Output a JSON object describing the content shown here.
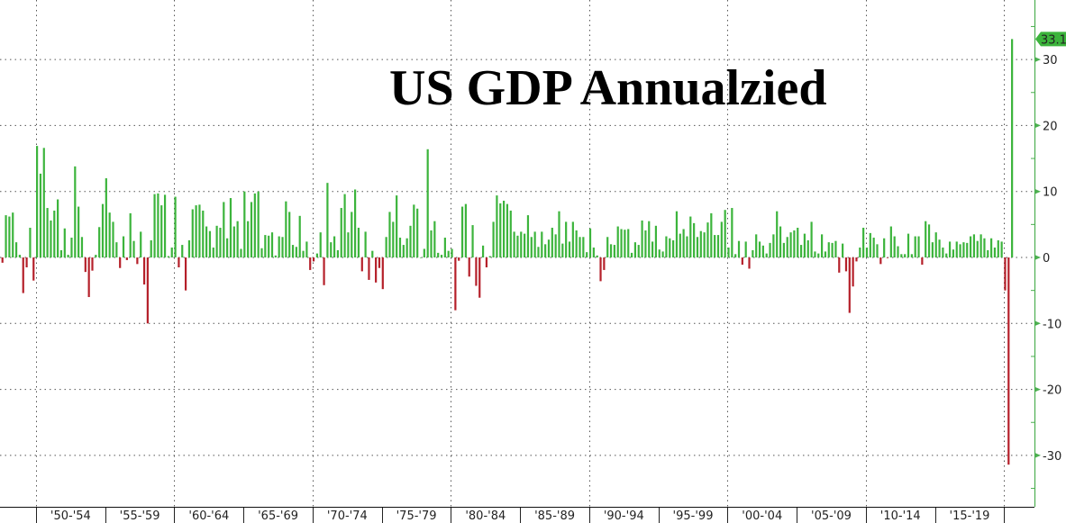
{
  "chart_data": {
    "type": "bar",
    "title": "US GDP Annualzied",
    "xlabel": "",
    "ylabel": "",
    "ylim": [
      -38,
      39
    ],
    "y_ticks": [
      30,
      20,
      10,
      0,
      -10,
      -20,
      -30
    ],
    "grid": true,
    "last_value_label": "33.1",
    "x_tick_labels": [
      "'50-'54",
      "'55-'59",
      "'60-'64",
      "'65-'69",
      "'70-'74",
      "'75-'79",
      "'80-'84",
      "'85-'89",
      "'90-'94",
      "'95-'99",
      "'00-'04",
      "'05-'09",
      "'10-'14",
      "'15-'19"
    ],
    "colors": {
      "positive": "#3cb43c",
      "negative": "#b5202a",
      "axis": "#4caf50",
      "label_tag": "#3cb43c"
    },
    "quarterly_values_by_year": [
      {
        "year": 1947,
        "q": [
          null,
          -1.0,
          -0.8,
          6.4
        ]
      },
      {
        "year": 1948,
        "q": [
          6.2,
          6.8,
          2.3,
          0.4
        ]
      },
      {
        "year": 1949,
        "q": [
          -5.4,
          -1.5,
          4.5,
          -3.5
        ]
      },
      {
        "year": 1950,
        "q": [
          16.9,
          12.7,
          16.6,
          7.5
        ]
      },
      {
        "year": 1951,
        "q": [
          5.6,
          7.1,
          8.8,
          1.1
        ]
      },
      {
        "year": 1952,
        "q": [
          4.4,
          0.4,
          3.0,
          13.8
        ]
      },
      {
        "year": 1953,
        "q": [
          7.7,
          3.1,
          -2.2,
          -6.0
        ]
      },
      {
        "year": 1954,
        "q": [
          -2.0,
          0.4,
          4.6,
          8.1
        ]
      },
      {
        "year": 1955,
        "q": [
          12.0,
          6.8,
          5.4,
          2.3
        ]
      },
      {
        "year": 1956,
        "q": [
          -1.6,
          3.2,
          -0.4,
          6.7
        ]
      },
      {
        "year": 1957,
        "q": [
          2.5,
          -1.0,
          3.9,
          -4.1
        ]
      },
      {
        "year": 1958,
        "q": [
          -10.0,
          2.6,
          9.6,
          9.7
        ]
      },
      {
        "year": 1959,
        "q": [
          7.9,
          9.5,
          0.2,
          1.5
        ]
      },
      {
        "year": 1960,
        "q": [
          9.2,
          -1.5,
          1.9,
          -5.0
        ]
      },
      {
        "year": 1961,
        "q": [
          2.6,
          7.3,
          7.9,
          8.0
        ]
      },
      {
        "year": 1962,
        "q": [
          7.1,
          4.7,
          4.0,
          1.5
        ]
      },
      {
        "year": 1963,
        "q": [
          4.8,
          4.5,
          8.4,
          2.9
        ]
      },
      {
        "year": 1964,
        "q": [
          9.0,
          4.7,
          5.5,
          1.3
        ]
      },
      {
        "year": 1965,
        "q": [
          10.0,
          5.5,
          8.4,
          9.7
        ]
      },
      {
        "year": 1966,
        "q": [
          10.0,
          1.4,
          3.4,
          3.3
        ]
      },
      {
        "year": 1967,
        "q": [
          3.8,
          0.3,
          3.2,
          3.1
        ]
      },
      {
        "year": 1968,
        "q": [
          8.5,
          6.9,
          1.9,
          1.6
        ]
      },
      {
        "year": 1969,
        "q": [
          6.3,
          1.0,
          2.4,
          -1.9
        ]
      },
      {
        "year": 1970,
        "q": [
          -0.6,
          0.6,
          3.8,
          -4.2
        ]
      },
      {
        "year": 1971,
        "q": [
          11.3,
          2.3,
          3.2,
          1.1
        ]
      },
      {
        "year": 1972,
        "q": [
          7.5,
          9.6,
          3.8,
          6.9
        ]
      },
      {
        "year": 1973,
        "q": [
          10.3,
          4.5,
          -2.1,
          3.9
        ]
      },
      {
        "year": 1974,
        "q": [
          -3.4,
          1.0,
          -3.8,
          -1.6
        ]
      },
      {
        "year": 1975,
        "q": [
          -4.8,
          3.1,
          6.9,
          5.4
        ]
      },
      {
        "year": 1976,
        "q": [
          9.4,
          3.0,
          1.9,
          2.9
        ]
      },
      {
        "year": 1977,
        "q": [
          4.8,
          8.0,
          7.4,
          0.0
        ]
      },
      {
        "year": 1978,
        "q": [
          1.3,
          16.4,
          4.1,
          5.5
        ]
      },
      {
        "year": 1979,
        "q": [
          0.7,
          0.4,
          3.0,
          1.0
        ]
      },
      {
        "year": 1980,
        "q": [
          1.3,
          -8.0,
          -0.5,
          7.7
        ]
      },
      {
        "year": 1981,
        "q": [
          8.1,
          -2.9,
          4.9,
          -4.3
        ]
      },
      {
        "year": 1982,
        "q": [
          -6.1,
          1.8,
          -1.5,
          0.2
        ]
      },
      {
        "year": 1983,
        "q": [
          5.4,
          9.4,
          8.2,
          8.6
        ]
      },
      {
        "year": 1984,
        "q": [
          8.1,
          7.1,
          3.9,
          3.3
        ]
      },
      {
        "year": 1985,
        "q": [
          3.9,
          3.6,
          6.4,
          3.1
        ]
      },
      {
        "year": 1986,
        "q": [
          3.9,
          1.6,
          3.9,
          2.0
        ]
      },
      {
        "year": 1987,
        "q": [
          2.7,
          4.5,
          3.5,
          7.0
        ]
      },
      {
        "year": 1988,
        "q": [
          2.1,
          5.4,
          2.4,
          5.4
        ]
      },
      {
        "year": 1989,
        "q": [
          4.1,
          3.1,
          3.1,
          0.8
        ]
      },
      {
        "year": 1990,
        "q": [
          4.4,
          1.5,
          0.3,
          -3.6
        ]
      },
      {
        "year": 1991,
        "q": [
          -1.9,
          3.1,
          2.0,
          1.9
        ]
      },
      {
        "year": 1992,
        "q": [
          4.7,
          4.3,
          4.2,
          4.3
        ]
      },
      {
        "year": 1993,
        "q": [
          0.7,
          2.3,
          1.9,
          5.6
        ]
      },
      {
        "year": 1994,
        "q": [
          4.1,
          5.5,
          2.4,
          4.8
        ]
      },
      {
        "year": 1995,
        "q": [
          1.2,
          0.9,
          3.2,
          2.9
        ]
      },
      {
        "year": 1996,
        "q": [
          2.6,
          7.0,
          3.6,
          4.3
        ]
      },
      {
        "year": 1997,
        "q": [
          3.2,
          6.2,
          5.2,
          3.1
        ]
      },
      {
        "year": 1998,
        "q": [
          4.0,
          3.8,
          5.3,
          6.7
        ]
      },
      {
        "year": 1999,
        "q": [
          3.4,
          3.4,
          5.4,
          7.2
        ]
      },
      {
        "year": 2000,
        "q": [
          1.5,
          7.5,
          0.5,
          2.5
        ]
      },
      {
        "year": 2001,
        "q": [
          -1.1,
          2.4,
          -1.7,
          1.1
        ]
      },
      {
        "year": 2002,
        "q": [
          3.5,
          2.4,
          1.8,
          0.6
        ]
      },
      {
        "year": 2003,
        "q": [
          2.2,
          3.5,
          7.0,
          4.7
        ]
      },
      {
        "year": 2004,
        "q": [
          2.2,
          3.1,
          3.8,
          4.1
        ]
      },
      {
        "year": 2005,
        "q": [
          4.5,
          1.9,
          3.6,
          2.6
        ]
      },
      {
        "year": 2006,
        "q": [
          5.4,
          0.9,
          0.6,
          3.5
        ]
      },
      {
        "year": 2007,
        "q": [
          0.9,
          2.3,
          2.2,
          2.5
        ]
      },
      {
        "year": 2008,
        "q": [
          -2.3,
          2.1,
          -2.1,
          -8.4
        ]
      },
      {
        "year": 2009,
        "q": [
          -4.4,
          -0.6,
          1.5,
          4.5
        ]
      },
      {
        "year": 2010,
        "q": [
          1.5,
          3.7,
          3.0,
          2.0
        ]
      },
      {
        "year": 2011,
        "q": [
          -1.0,
          2.9,
          -0.1,
          4.7
        ]
      },
      {
        "year": 2012,
        "q": [
          3.2,
          1.7,
          0.5,
          0.5
        ]
      },
      {
        "year": 2013,
        "q": [
          3.6,
          0.5,
          3.2,
          3.2
        ]
      },
      {
        "year": 2014,
        "q": [
          -1.1,
          5.5,
          5.0,
          2.3
        ]
      },
      {
        "year": 2015,
        "q": [
          3.8,
          2.7,
          1.5,
          0.6
        ]
      },
      {
        "year": 2016,
        "q": [
          2.4,
          1.2,
          2.4,
          2.0
        ]
      },
      {
        "year": 2017,
        "q": [
          2.3,
          2.2,
          3.2,
          3.5
        ]
      },
      {
        "year": 2018,
        "q": [
          2.5,
          3.5,
          2.9,
          1.1
        ]
      },
      {
        "year": 2019,
        "q": [
          2.9,
          1.5,
          2.6,
          2.4
        ]
      },
      {
        "year": 2020,
        "q": [
          -5.0,
          -31.4,
          33.1,
          null
        ]
      }
    ]
  }
}
